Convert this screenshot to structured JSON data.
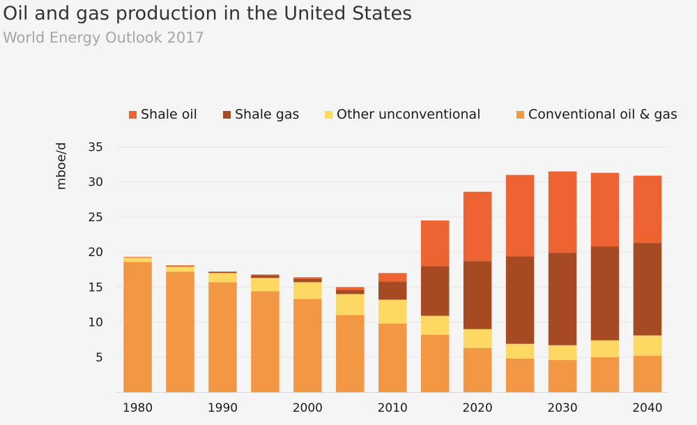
{
  "header": {
    "title": "Oil and gas production in the United States",
    "subtitle": "World Energy Outlook 2017"
  },
  "chart_data": {
    "type": "bar",
    "stacked": true,
    "title": "Oil and gas production in the United States",
    "subtitle": "World Energy Outlook 2017",
    "xlabel": "",
    "ylabel": "mboe/d",
    "ylim": [
      0,
      35
    ],
    "yticks": [
      5,
      10,
      15,
      20,
      25,
      30,
      35
    ],
    "grid": true,
    "legend_position": "top",
    "categories": [
      "1980",
      "1985",
      "1990",
      "1995",
      "2000",
      "2005",
      "2010",
      "2015",
      "2020",
      "2025",
      "2030",
      "2035",
      "2040"
    ],
    "x_tick_labels": [
      "1980",
      "",
      "1990",
      "",
      "2000",
      "",
      "2010",
      "",
      "2020",
      "",
      "2030",
      "",
      "2040"
    ],
    "series": [
      {
        "name": "Conventional oil & gas",
        "color": "#f29845",
        "values": [
          18.6,
          17.2,
          15.7,
          14.4,
          13.3,
          11.0,
          9.8,
          8.2,
          6.3,
          4.8,
          4.6,
          5.0,
          5.2
        ]
      },
      {
        "name": "Other unconventional",
        "color": "#fdd963",
        "values": [
          0.6,
          0.7,
          1.3,
          1.9,
          2.4,
          3.0,
          3.4,
          2.7,
          2.7,
          2.1,
          2.1,
          2.4,
          2.9
        ]
      },
      {
        "name": "Shale gas",
        "color": "#a64a23",
        "values": [
          0.0,
          0.0,
          0.2,
          0.4,
          0.5,
          0.6,
          2.6,
          7.1,
          9.7,
          12.5,
          13.2,
          13.4,
          13.2
        ]
      },
      {
        "name": "Shale oil",
        "color": "#ee6332",
        "values": [
          0.1,
          0.2,
          0.0,
          0.1,
          0.2,
          0.4,
          1.2,
          6.5,
          9.9,
          11.6,
          11.6,
          10.5,
          9.6
        ]
      }
    ],
    "legend": [
      {
        "label": "Shale oil",
        "color": "#ee6332"
      },
      {
        "label": "Shale gas",
        "color": "#a64a23"
      },
      {
        "label": "Other unconventional",
        "color": "#fdd963"
      },
      {
        "label": "Conventional oil & gas",
        "color": "#f29845"
      }
    ]
  }
}
